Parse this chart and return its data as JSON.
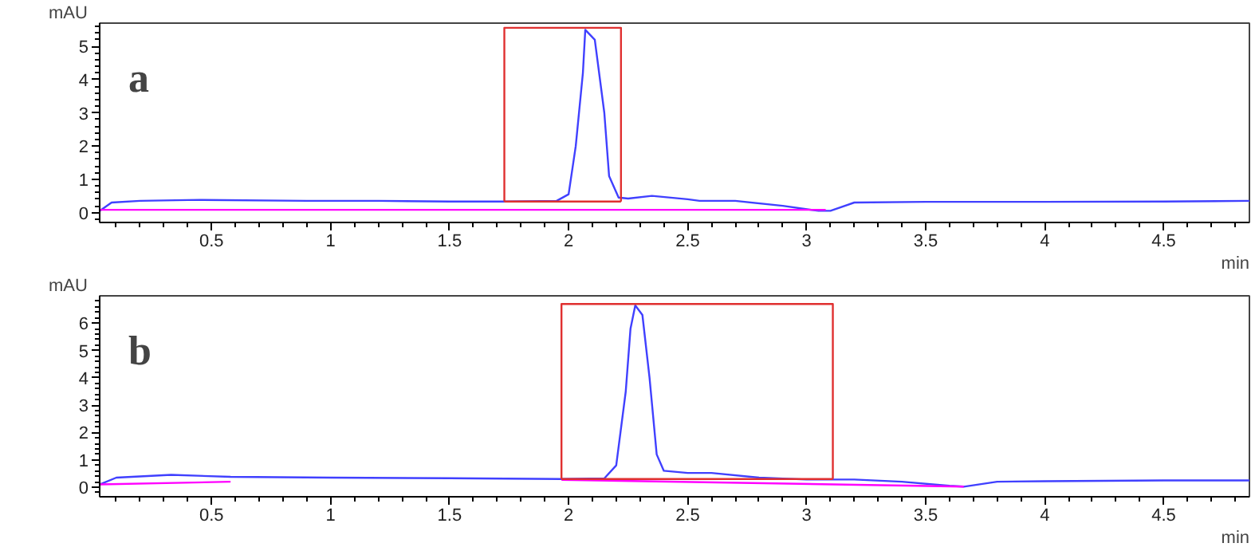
{
  "chart_data": [
    {
      "type": "line",
      "title": "a",
      "xlabel": "min",
      "ylabel": "mAU",
      "xlim": [
        0.03,
        4.86
      ],
      "ylim": [
        -0.3,
        5.7
      ],
      "xticks": [
        0.5,
        1,
        1.5,
        2,
        2.5,
        3,
        3.5,
        4,
        4.5
      ],
      "yticks": [
        0,
        1,
        2,
        3,
        4,
        5
      ],
      "series": [
        {
          "color": "#4040ff",
          "x": [
            0.03,
            0.08,
            0.2,
            0.45,
            0.9,
            1.2,
            1.5,
            1.75,
            1.95,
            2.0,
            2.03,
            2.06,
            2.07,
            2.11,
            2.15,
            2.17,
            2.21,
            2.25,
            2.35,
            2.5,
            2.55,
            2.7,
            2.9,
            3.05,
            3.1,
            3.2,
            3.5,
            4.0,
            4.5,
            4.86
          ],
          "values": [
            0.05,
            0.3,
            0.35,
            0.38,
            0.35,
            0.35,
            0.33,
            0.33,
            0.35,
            0.55,
            2.0,
            4.2,
            5.5,
            5.2,
            3.0,
            1.1,
            0.45,
            0.42,
            0.5,
            0.4,
            0.35,
            0.35,
            0.2,
            0.05,
            0.05,
            0.3,
            0.32,
            0.32,
            0.33,
            0.35
          ]
        },
        {
          "color": "#ff00ff",
          "x": [
            0.03,
            3.08
          ],
          "values": [
            0.08,
            0.08
          ]
        },
        {
          "color": "#e03030",
          "x": [
            1.73,
            1.73,
            2.22,
            2.22
          ],
          "values": [
            0.33,
            5.56,
            5.56,
            0.33
          ]
        },
        {
          "color": "#e03030",
          "x": [
            1.73,
            2.22
          ],
          "values": [
            0.33,
            0.33
          ]
        }
      ]
    },
    {
      "type": "line",
      "title": "b",
      "xlabel": "min",
      "ylabel": "mAU",
      "xlim": [
        0.03,
        4.86
      ],
      "ylim": [
        -0.35,
        7.0
      ],
      "xticks": [
        0.5,
        1,
        1.5,
        2,
        2.5,
        3,
        3.5,
        4,
        4.5
      ],
      "yticks": [
        0,
        1,
        2,
        3,
        4,
        5,
        6
      ],
      "series": [
        {
          "color": "#4040ff",
          "x": [
            0.03,
            0.1,
            0.33,
            0.58,
            1.0,
            1.5,
            1.97,
            2.15,
            2.2,
            2.24,
            2.26,
            2.28,
            2.31,
            2.34,
            2.37,
            2.4,
            2.5,
            2.6,
            2.8,
            3.0,
            3.2,
            3.4,
            3.6,
            3.66,
            3.8,
            4.0,
            4.5,
            4.86
          ],
          "values": [
            0.1,
            0.35,
            0.45,
            0.38,
            0.35,
            0.33,
            0.3,
            0.32,
            0.8,
            3.5,
            5.8,
            6.65,
            6.3,
            4.0,
            1.2,
            0.6,
            0.52,
            0.52,
            0.35,
            0.28,
            0.28,
            0.2,
            0.05,
            0.02,
            0.2,
            0.22,
            0.25,
            0.25
          ]
        },
        {
          "color": "#ff00ff",
          "x": [
            0.03,
            0.58
          ],
          "values": [
            0.1,
            0.2
          ]
        },
        {
          "color": "#ff00ff",
          "x": [
            1.97,
            3.66
          ],
          "values": [
            0.27,
            0.02
          ]
        },
        {
          "color": "#e03030",
          "x": [
            1.97,
            1.97,
            3.11,
            3.11
          ],
          "values": [
            0.3,
            6.7,
            6.7,
            0.3
          ]
        },
        {
          "color": "#e03030",
          "x": [
            1.97,
            3.11
          ],
          "values": [
            0.3,
            0.3
          ]
        }
      ]
    }
  ]
}
